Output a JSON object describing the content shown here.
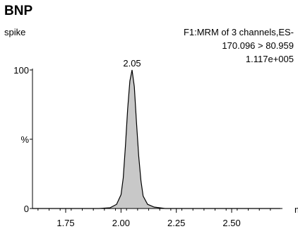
{
  "chart_data": {
    "type": "area",
    "title": "BNP",
    "subtitle": "spike",
    "info_lines": [
      "F1:MRM of 3 channels,ES-",
      "170.096 > 80.959",
      "1.117e+005"
    ],
    "xlabel": "min",
    "ylabel": "%",
    "xlim": [
      1.6,
      2.72
    ],
    "ylim": [
      0,
      100
    ],
    "x_ticks": [
      1.75,
      2.0,
      2.25,
      2.5
    ],
    "x_tick_labels": [
      "1.75",
      "2.00",
      "2.25",
      "2.50"
    ],
    "y_ticks": [
      0,
      100
    ],
    "y_tick_labels": [
      "0",
      "100"
    ],
    "y_mid_label": "%",
    "peak_label": "2.05",
    "peak": {
      "x": 2.05,
      "y": 100
    },
    "fill_color": "#c8c8c8",
    "line_color": "#000000",
    "series": [
      {
        "x": [
          1.6,
          1.7,
          1.8,
          1.9,
          1.95,
          1.98,
          2.0,
          2.01,
          2.02,
          2.03,
          2.04,
          2.05,
          2.06,
          2.07,
          2.08,
          2.09,
          2.1,
          2.12,
          2.15,
          2.2,
          2.3,
          2.5,
          2.72
        ],
        "y": [
          0,
          0,
          0,
          0,
          0.5,
          3,
          10,
          22,
          45,
          72,
          92,
          100,
          88,
          62,
          38,
          20,
          9,
          3,
          1,
          0,
          0,
          0,
          0
        ]
      }
    ]
  }
}
